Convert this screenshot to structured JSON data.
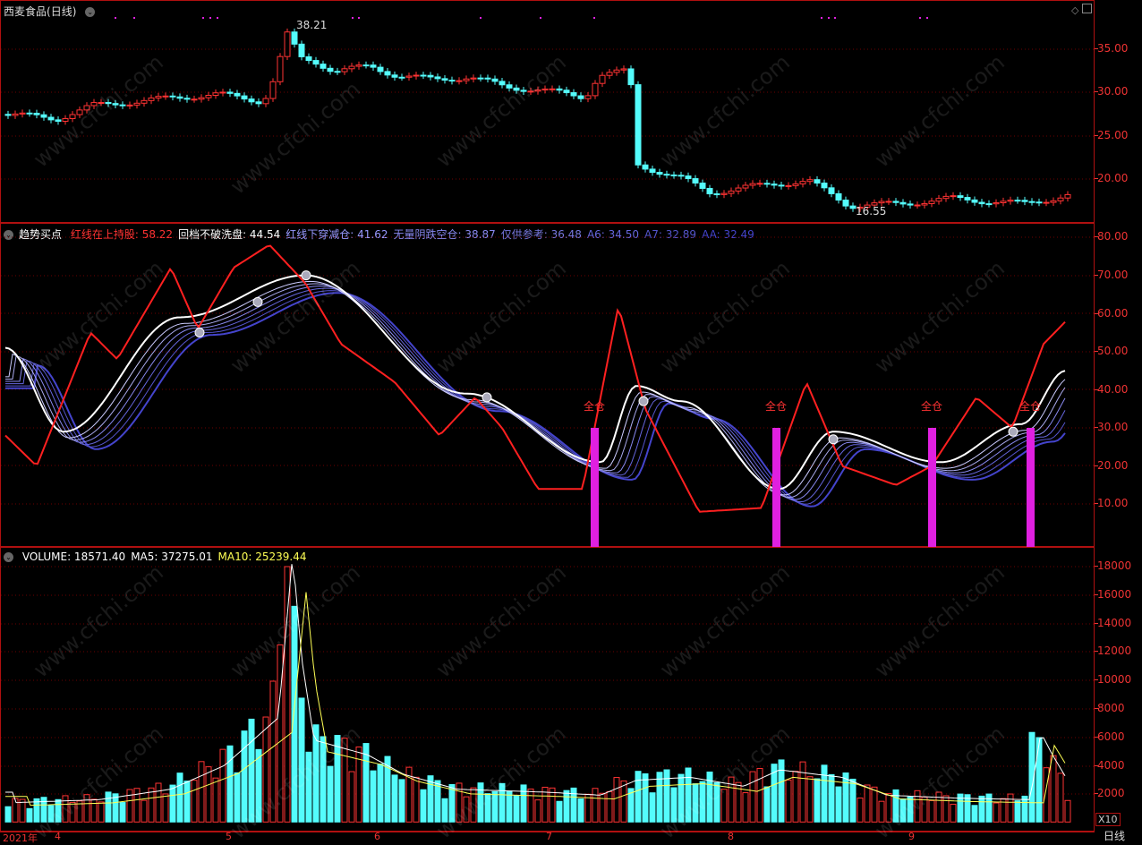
{
  "stock": {
    "name": "西麦食品",
    "period": "(日线)",
    "high_label": "38.21",
    "low_label": "16.55",
    "axis": [
      "35.00",
      "30.00",
      "25.00",
      "20.00"
    ]
  },
  "indicator": {
    "name": "趋势买点",
    "items": [
      {
        "label": "红线在上持股:",
        "value": "58.22",
        "color": "#ff3333"
      },
      {
        "label": "回档不破洗盘:",
        "value": "44.54",
        "color": "#ffffff"
      },
      {
        "label": "红线下穿减仓:",
        "value": "41.62",
        "color": "#9999ff"
      },
      {
        "label": "无量阴跌空仓:",
        "value": "38.87",
        "color": "#8888ee"
      },
      {
        "label": "仅供参考:",
        "value": "36.48",
        "color": "#7777dd"
      },
      {
        "label": "A6:",
        "value": "34.50",
        "color": "#6666dd"
      },
      {
        "label": "A7:",
        "value": "32.89",
        "color": "#5555cc"
      },
      {
        "label": "AA:",
        "value": "32.49",
        "color": "#4444cc"
      }
    ],
    "axis": [
      "80.00",
      "70.00",
      "60.00",
      "50.00",
      "40.00",
      "30.00",
      "20.00",
      "10.00"
    ],
    "signal_label": "全仓"
  },
  "volume": {
    "items": [
      {
        "label": "VOLUME:",
        "value": "18571.40",
        "color": "#ffffff"
      },
      {
        "label": "MA5:",
        "value": "37275.01",
        "color": "#ffffff"
      },
      {
        "label": "MA10:",
        "value": "25239.44",
        "color": "#ffff55"
      }
    ],
    "axis": [
      "18000",
      "16000",
      "14000",
      "12000",
      "10000",
      "8000",
      "6000",
      "4000",
      "2000"
    ],
    "unit": "X10"
  },
  "dates": {
    "year": "2021年",
    "months": [
      "4",
      "5",
      "6",
      "7",
      "8",
      "9"
    ],
    "period_label": "日线"
  },
  "watermark": "www.cfchi.com",
  "colors": {
    "up": "#ff3333",
    "down": "#54fcfc",
    "grid": "#8b0000",
    "signal": "#e020e0"
  }
}
